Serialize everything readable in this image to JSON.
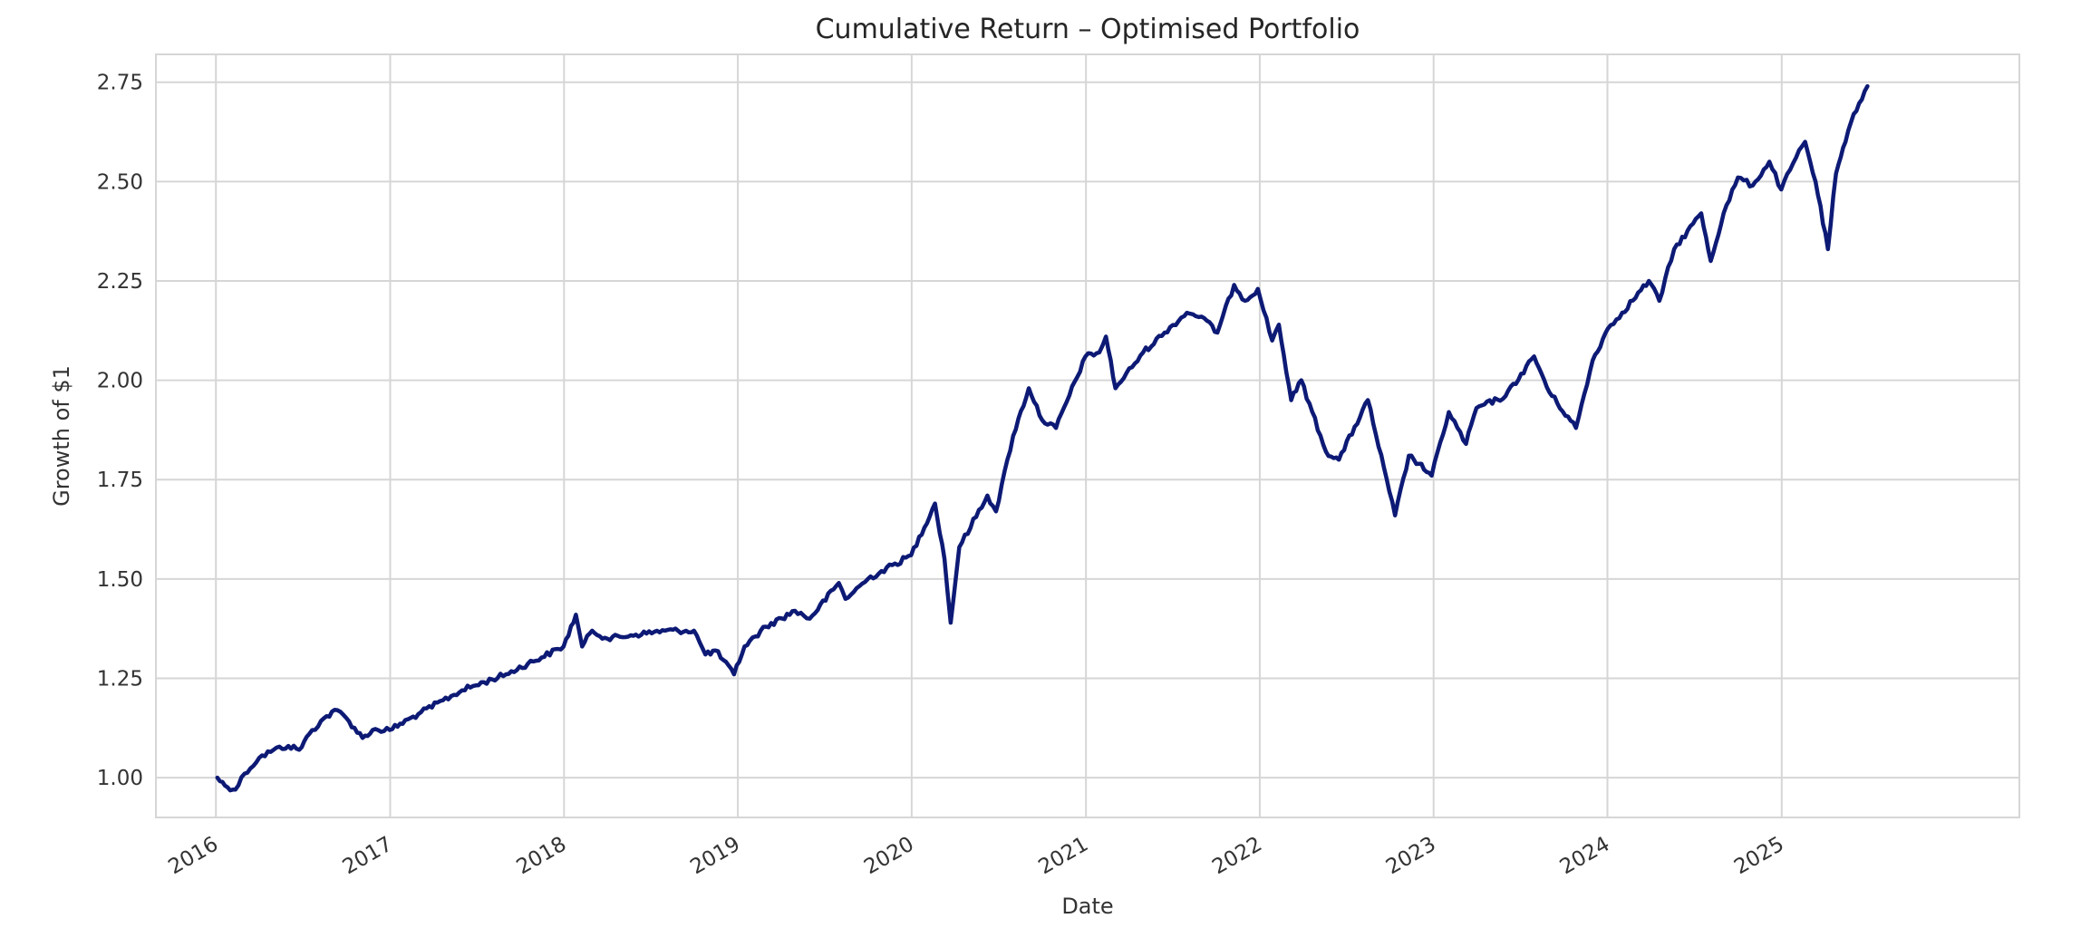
{
  "chart_data": {
    "type": "line",
    "title": "Cumulative Return – Optimised Portfolio",
    "xlabel": "Date",
    "ylabel": "Growth of $1",
    "xlim": [
      "2015-08-28",
      "2026-05-15"
    ],
    "ylim": [
      0.9,
      2.82
    ],
    "x_ticks": [
      "2016",
      "2017",
      "2018",
      "2019",
      "2020",
      "2021",
      "2022",
      "2023",
      "2024",
      "2025"
    ],
    "y_ticks": [
      "1.00",
      "1.25",
      "1.50",
      "1.75",
      "2.00",
      "2.25",
      "2.50",
      "2.75"
    ],
    "grid": true,
    "colors": {
      "line": "#0d1a75",
      "grid": "#d6d6d6",
      "frame": "#d6d6d6",
      "background": "#ffffff"
    },
    "series": [
      {
        "name": "",
        "x": [
          "2016-01-04",
          "2016-01-20",
          "2016-02-11",
          "2016-03-01",
          "2016-04-01",
          "2016-05-01",
          "2016-06-01",
          "2016-06-24",
          "2016-07-15",
          "2016-08-15",
          "2016-09-12",
          "2016-10-01",
          "2016-11-04",
          "2016-11-25",
          "2016-12-31",
          "2017-03-01",
          "2017-06-01",
          "2017-09-01",
          "2017-12-31",
          "2018-01-26",
          "2018-02-08",
          "2018-03-01",
          "2018-04-02",
          "2018-06-01",
          "2018-08-01",
          "2018-10-01",
          "2018-10-25",
          "2018-11-15",
          "2018-12-24",
          "2019-01-15",
          "2019-03-01",
          "2019-05-01",
          "2019-06-01",
          "2019-08-01",
          "2019-08-15",
          "2019-10-01",
          "2019-12-31",
          "2020-02-19",
          "2020-03-10",
          "2020-03-23",
          "2020-04-10",
          "2020-06-08",
          "2020-06-26",
          "2020-08-01",
          "2020-09-03",
          "2020-10-01",
          "2020-10-30",
          "2020-12-31",
          "2021-01-29",
          "2021-02-12",
          "2021-03-04",
          "2021-05-01",
          "2021-06-15",
          "2021-08-01",
          "2021-09-01",
          "2021-10-04",
          "2021-11-08",
          "2021-12-01",
          "2021-12-28",
          "2022-01-27",
          "2022-02-10",
          "2022-03-08",
          "2022-03-29",
          "2022-05-20",
          "2022-06-16",
          "2022-08-16",
          "2022-09-30",
          "2022-10-12",
          "2022-11-10",
          "2022-12-01",
          "2022-12-28",
          "2023-02-02",
          "2023-03-10",
          "2023-04-01",
          "2023-06-01",
          "2023-07-31",
          "2023-09-01",
          "2023-10-27",
          "2023-12-01",
          "2024-01-02",
          "2024-02-01",
          "2024-03-28",
          "2024-04-19",
          "2024-05-20",
          "2024-07-16",
          "2024-08-05",
          "2024-09-01",
          "2024-10-01",
          "2024-11-01",
          "2024-12-06",
          "2024-12-31",
          "2025-01-31",
          "2025-02-19",
          "2025-03-13",
          "2025-04-08",
          "2025-04-25",
          "2025-05-15",
          "2025-06-01",
          "2025-06-30"
        ],
        "y": [
          1.0,
          0.98,
          0.97,
          1.01,
          1.05,
          1.07,
          1.08,
          1.07,
          1.11,
          1.15,
          1.17,
          1.15,
          1.1,
          1.12,
          1.12,
          1.16,
          1.22,
          1.26,
          1.33,
          1.41,
          1.33,
          1.37,
          1.35,
          1.36,
          1.37,
          1.37,
          1.31,
          1.32,
          1.26,
          1.33,
          1.38,
          1.42,
          1.4,
          1.49,
          1.45,
          1.5,
          1.56,
          1.69,
          1.55,
          1.39,
          1.58,
          1.71,
          1.67,
          1.86,
          1.98,
          1.9,
          1.88,
          2.06,
          2.07,
          2.11,
          1.98,
          2.07,
          2.12,
          2.17,
          2.16,
          2.12,
          2.24,
          2.2,
          2.23,
          2.1,
          2.14,
          1.95,
          2.0,
          1.82,
          1.8,
          1.95,
          1.72,
          1.66,
          1.81,
          1.79,
          1.76,
          1.92,
          1.84,
          1.93,
          1.96,
          2.06,
          1.97,
          1.88,
          2.05,
          2.13,
          2.17,
          2.25,
          2.2,
          2.33,
          2.42,
          2.3,
          2.42,
          2.51,
          2.49,
          2.55,
          2.48,
          2.56,
          2.6,
          2.5,
          2.33,
          2.52,
          2.6,
          2.67,
          2.74
        ]
      }
    ]
  }
}
